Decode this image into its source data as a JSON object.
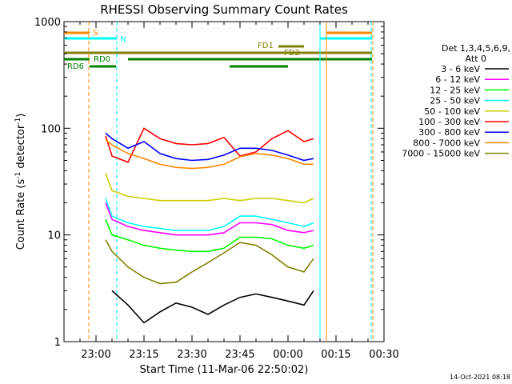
{
  "chart_data": {
    "type": "line",
    "title": "RHESSI Observing Summary Count Rates",
    "xlabel": "Start Time (11-Mar-06 22:50:02)",
    "ylabel_main": "Count Rate (s",
    "ylabel_exp1": "-1",
    "ylabel_mid": " detector",
    "ylabel_exp2": "-1",
    "ylabel_end": ")",
    "y_scale": "log",
    "xlim": [
      "22:50",
      "00:30"
    ],
    "ylim": [
      1,
      1000
    ],
    "x_ticks": [
      "23:00",
      "23:15",
      "23:30",
      "23:45",
      "00:00",
      "00:15",
      "00:30"
    ],
    "y_ticks": [
      "1",
      "10",
      "100",
      "1000"
    ],
    "legend_header_1": "Det 1,3,4,5,6,9,",
    "legend_header_2": "Att 0",
    "legend_position": "right",
    "grid": false,
    "timestamp": "14-Oct-2021 08:18",
    "series": [
      {
        "name": "3 - 6 keV",
        "color": "#000000",
        "x": [
          "23:05",
          "23:10",
          "23:15",
          "23:20",
          "23:25",
          "23:30",
          "23:35",
          "23:40",
          "23:45",
          "23:50",
          "23:55",
          "00:00",
          "00:05",
          "00:08"
        ],
        "values": [
          3,
          2.2,
          1.5,
          1.9,
          2.3,
          2.1,
          1.8,
          2.2,
          2.6,
          2.8,
          2.6,
          2.4,
          2.2,
          3
        ]
      },
      {
        "name": "6 - 12 keV",
        "color": "#ff00ff",
        "x": [
          "23:03",
          "23:05",
          "23:10",
          "23:15",
          "23:20",
          "23:25",
          "23:30",
          "23:35",
          "23:40",
          "23:45",
          "23:50",
          "23:55",
          "00:00",
          "00:05",
          "00:08"
        ],
        "values": [
          20,
          14,
          12,
          11,
          10.5,
          10,
          10,
          10,
          10.5,
          13,
          13,
          12.5,
          11,
          10.5,
          11
        ]
      },
      {
        "name": "12 - 25 keV",
        "color": "#00ff00",
        "x": [
          "23:03",
          "23:05",
          "23:10",
          "23:15",
          "23:20",
          "23:25",
          "23:30",
          "23:35",
          "23:40",
          "23:45",
          "23:50",
          "23:55",
          "00:00",
          "00:05",
          "00:08"
        ],
        "values": [
          14,
          10,
          9,
          8,
          7.5,
          7.2,
          7.0,
          7.0,
          7.5,
          9.5,
          9.5,
          9.2,
          8.0,
          7.5,
          8
        ]
      },
      {
        "name": "25 - 50 keV",
        "color": "#00ffff",
        "x": [
          "23:03",
          "23:05",
          "23:10",
          "23:15",
          "23:20",
          "23:25",
          "23:30",
          "23:35",
          "23:40",
          "23:45",
          "23:50",
          "23:55",
          "00:00",
          "00:05",
          "00:08"
        ],
        "values": [
          22,
          15,
          13,
          12,
          11.5,
          11,
          11,
          11,
          12,
          15,
          15,
          14,
          13,
          12,
          13
        ]
      },
      {
        "name": "50 - 100 keV",
        "color": "#cccc00",
        "x": [
          "23:03",
          "23:05",
          "23:10",
          "23:15",
          "23:20",
          "23:25",
          "23:30",
          "23:35",
          "23:40",
          "23:45",
          "23:50",
          "23:55",
          "00:00",
          "00:05",
          "00:08"
        ],
        "values": [
          38,
          26,
          23,
          22,
          21,
          21,
          21,
          21,
          22,
          21,
          22,
          22,
          21,
          20,
          22
        ]
      },
      {
        "name": "100 - 300 keV",
        "color": "#ff0000",
        "x": [
          "23:03",
          "23:05",
          "23:10",
          "23:15",
          "23:20",
          "23:25",
          "23:30",
          "23:35",
          "23:40",
          "23:45",
          "23:50",
          "23:55",
          "00:00",
          "00:05",
          "00:08"
        ],
        "values": [
          85,
          55,
          48,
          100,
          80,
          72,
          70,
          72,
          82,
          55,
          60,
          80,
          95,
          75,
          80
        ]
      },
      {
        "name": "300 - 800 keV",
        "color": "#0000ff",
        "x": [
          "23:03",
          "23:05",
          "23:10",
          "23:15",
          "23:20",
          "23:25",
          "23:30",
          "23:35",
          "23:40",
          "23:45",
          "23:50",
          "23:55",
          "00:00",
          "00:05",
          "00:08"
        ],
        "values": [
          90,
          80,
          65,
          75,
          58,
          52,
          50,
          51,
          56,
          65,
          65,
          62,
          56,
          50,
          52
        ]
      },
      {
        "name": "800 - 7000 keV",
        "color": "#ff8800",
        "x": [
          "23:03",
          "23:05",
          "23:10",
          "23:15",
          "23:20",
          "23:25",
          "23:30",
          "23:35",
          "23:40",
          "23:45",
          "23:50",
          "23:55",
          "00:00",
          "00:05",
          "00:08"
        ],
        "values": [
          78,
          70,
          58,
          52,
          46,
          43,
          42,
          43,
          46,
          54,
          58,
          56,
          52,
          46,
          46
        ]
      },
      {
        "name": "7000 - 15000 keV",
        "color": "#808000",
        "x": [
          "23:03",
          "23:05",
          "23:10",
          "23:15",
          "23:20",
          "23:25",
          "23:30",
          "23:35",
          "23:40",
          "23:45",
          "23:50",
          "23:55",
          "00:00",
          "00:05",
          "00:08"
        ],
        "values": [
          9,
          7,
          5,
          4,
          3.5,
          3.6,
          4.5,
          5.5,
          6.8,
          8.5,
          8.0,
          6.5,
          5.0,
          4.5,
          6
        ]
      }
    ],
    "flags": [
      {
        "label": "S",
        "color": "#ff8800"
      },
      {
        "label": "N",
        "color": "#00ffff"
      },
      {
        "label": "FD1",
        "color": "#808000"
      },
      {
        "label": "FD2",
        "color": "#808000"
      },
      {
        "label": "RD0",
        "color": "#008000"
      },
      {
        "label": "RD6",
        "color": "#008000"
      }
    ]
  }
}
